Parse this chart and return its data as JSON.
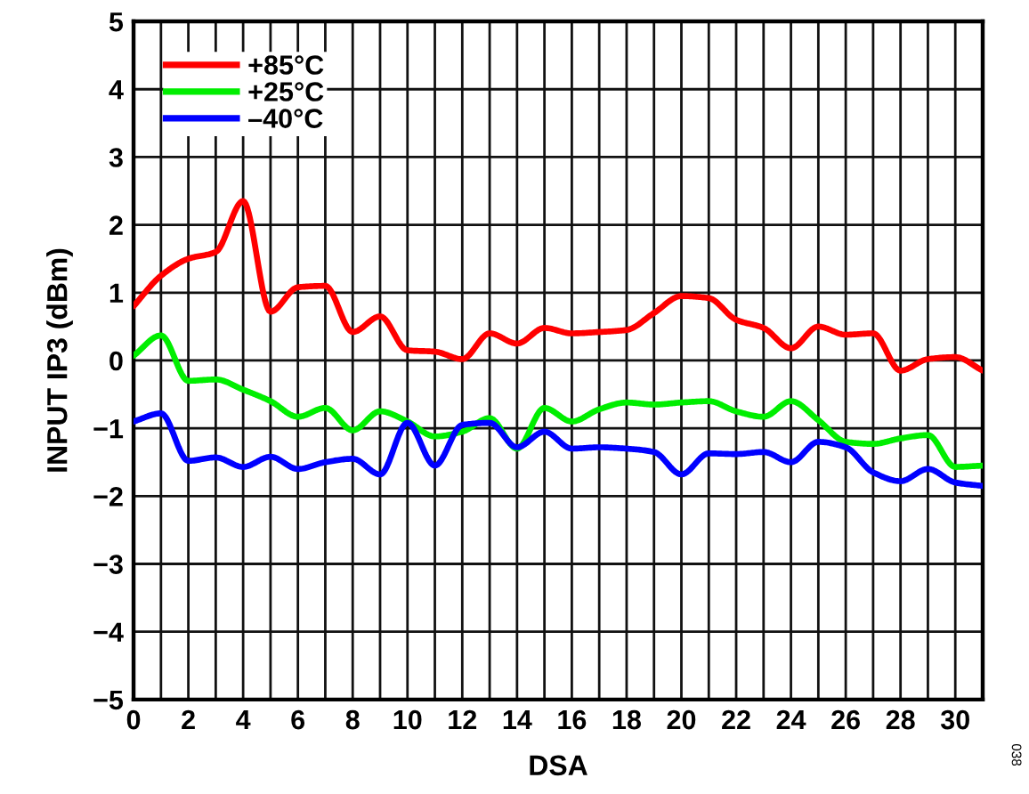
{
  "chart_data": {
    "type": "line",
    "xlabel": "DSA",
    "ylabel": "INPUT IP3 (dBm)",
    "x": [
      0,
      1,
      2,
      3,
      4,
      5,
      6,
      7,
      8,
      9,
      10,
      11,
      12,
      13,
      14,
      15,
      16,
      17,
      18,
      19,
      20,
      21,
      22,
      23,
      24,
      25,
      26,
      27,
      28,
      29,
      30,
      31
    ],
    "series": [
      {
        "name": "+85°C",
        "color": "#ff0000",
        "values": [
          0.8,
          1.25,
          1.5,
          1.6,
          2.35,
          0.72,
          1.08,
          1.1,
          0.42,
          0.65,
          0.15,
          0.13,
          0.02,
          0.4,
          0.25,
          0.48,
          0.4,
          0.42,
          0.45,
          0.7,
          0.95,
          0.92,
          0.6,
          0.48,
          0.18,
          0.5,
          0.38,
          0.4,
          -0.15,
          0.02,
          0.05,
          -0.15
        ]
      },
      {
        "name": "+25°C",
        "color": "#00ee00",
        "values": [
          0.07,
          0.37,
          -0.3,
          -0.28,
          -0.43,
          -0.6,
          -0.83,
          -0.7,
          -1.03,
          -0.75,
          -0.9,
          -1.12,
          -1.05,
          -0.85,
          -1.3,
          -0.7,
          -0.9,
          -0.72,
          -0.62,
          -0.65,
          -0.62,
          -0.6,
          -0.75,
          -0.83,
          -0.6,
          -0.88,
          -1.2,
          -1.23,
          -1.15,
          -1.1,
          -1.57,
          -1.55
        ]
      },
      {
        "name": "–40°C",
        "color": "#0000ff",
        "values": [
          -0.9,
          -0.78,
          -1.48,
          -1.43,
          -1.57,
          -1.42,
          -1.6,
          -1.5,
          -1.45,
          -1.68,
          -0.92,
          -1.55,
          -0.95,
          -0.92,
          -1.28,
          -1.05,
          -1.3,
          -1.28,
          -1.3,
          -1.35,
          -1.68,
          -1.37,
          -1.38,
          -1.35,
          -1.5,
          -1.2,
          -1.28,
          -1.65,
          -1.78,
          -1.6,
          -1.8,
          -1.85
        ]
      }
    ],
    "xlim": [
      0,
      31
    ],
    "xticks": [
      0,
      {
        "value": 1,
        "label": null
      },
      2,
      {
        "value": 3,
        "label": null
      },
      4,
      {
        "value": 5,
        "label": null
      },
      6,
      {
        "value": 7,
        "label": null
      },
      8,
      {
        "value": 9,
        "label": null
      },
      10,
      {
        "value": 11,
        "label": null
      },
      12,
      {
        "value": 13,
        "label": null
      },
      14,
      {
        "value": 15,
        "label": null
      },
      16,
      {
        "value": 17,
        "label": null
      },
      18,
      {
        "value": 19,
        "label": null
      },
      20,
      {
        "value": 21,
        "label": null
      },
      22,
      {
        "value": 23,
        "label": null
      },
      24,
      {
        "value": 25,
        "label": null
      },
      26,
      {
        "value": 27,
        "label": null
      },
      28,
      {
        "value": 29,
        "label": null
      },
      30,
      {
        "value": 31,
        "label": null
      }
    ],
    "ylim": [
      -5,
      5
    ],
    "yticks": [
      -5,
      -4,
      -3,
      -2,
      -1,
      0,
      1,
      2,
      3,
      4,
      5
    ],
    "grid": true,
    "legend": "top left",
    "line_style": "solid",
    "marker": "none",
    "annotations": [
      "038"
    ]
  }
}
